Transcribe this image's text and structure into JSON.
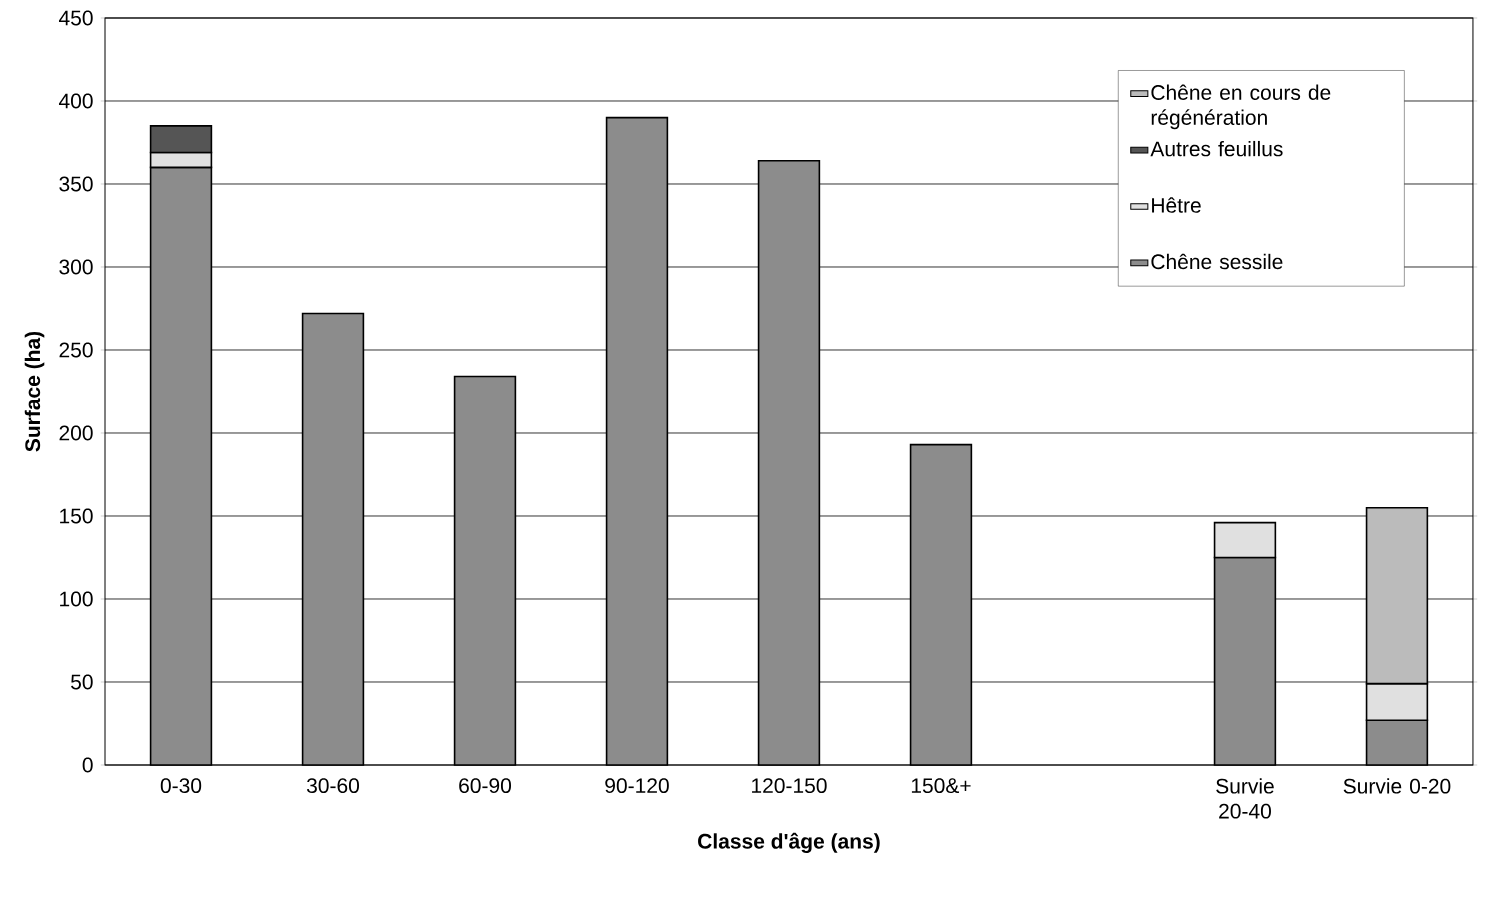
{
  "chart_data": {
    "type": "bar",
    "stacked": true,
    "xlabel": "Classe d'âge (ans)",
    "ylabel": "Surface (ha)",
    "categories": [
      "0-30",
      "30-60",
      "60-90",
      "90-120",
      "120-150",
      "150&+",
      null,
      "Survie 20-40",
      "Survie 0-20"
    ],
    "series": [
      {
        "name": "Chêne sessile",
        "color": "#8c8c8c",
        "values": [
          360,
          272,
          234,
          390,
          364,
          193,
          null,
          125,
          27
        ]
      },
      {
        "name": "Hêtre",
        "color": "#e0e0e0",
        "values": [
          9,
          null,
          null,
          null,
          null,
          null,
          null,
          21,
          22
        ]
      },
      {
        "name": "Autres feuillus",
        "color": "#555555",
        "values": [
          16,
          null,
          null,
          null,
          null,
          null,
          null,
          null,
          null
        ]
      },
      {
        "name": "Chêne en cours de régénération",
        "color": "#bbbbbb",
        "values": [
          null,
          null,
          null,
          null,
          null,
          null,
          null,
          null,
          106
        ]
      }
    ],
    "ylim": [
      0,
      450
    ],
    "yticks": [
      0,
      50,
      100,
      150,
      200,
      250,
      300,
      350,
      400,
      450
    ],
    "grid": "y",
    "legend": "top right"
  }
}
